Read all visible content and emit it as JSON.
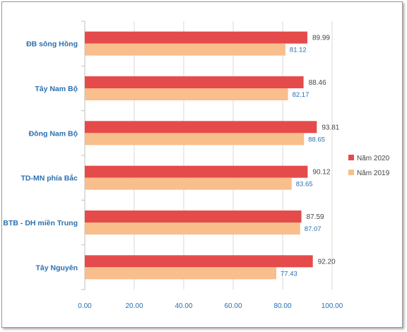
{
  "chart_data": {
    "type": "bar",
    "orientation": "horizontal",
    "categories": [
      "ĐB sông Hồng",
      "Tây Nam Bộ",
      "Đông Nam Bộ",
      "TD-MN phía Bắc",
      "BTB - DH miền Trung",
      "Tây Nguyên"
    ],
    "series": [
      {
        "name": "Năm 2020",
        "color": "#e54b4b",
        "values": [
          89.99,
          88.46,
          93.81,
          90.12,
          87.59,
          92.2
        ],
        "labels": [
          "89.99",
          "88.46",
          "93.81",
          "90.12",
          "87.59",
          "92.20"
        ]
      },
      {
        "name": "Năm 2019",
        "color": "#f8be8c",
        "values": [
          81.12,
          82.17,
          88.65,
          83.65,
          87.07,
          77.43
        ],
        "labels": [
          "81.12",
          "82.17",
          "88.65",
          "83.65",
          "87.07",
          "77.43"
        ]
      }
    ],
    "xlim": [
      0,
      100
    ],
    "xticks": [
      "0.00",
      "20.00",
      "40.00",
      "60.00",
      "80.00",
      "100.00"
    ],
    "grid": "vertical",
    "legend": "right"
  }
}
